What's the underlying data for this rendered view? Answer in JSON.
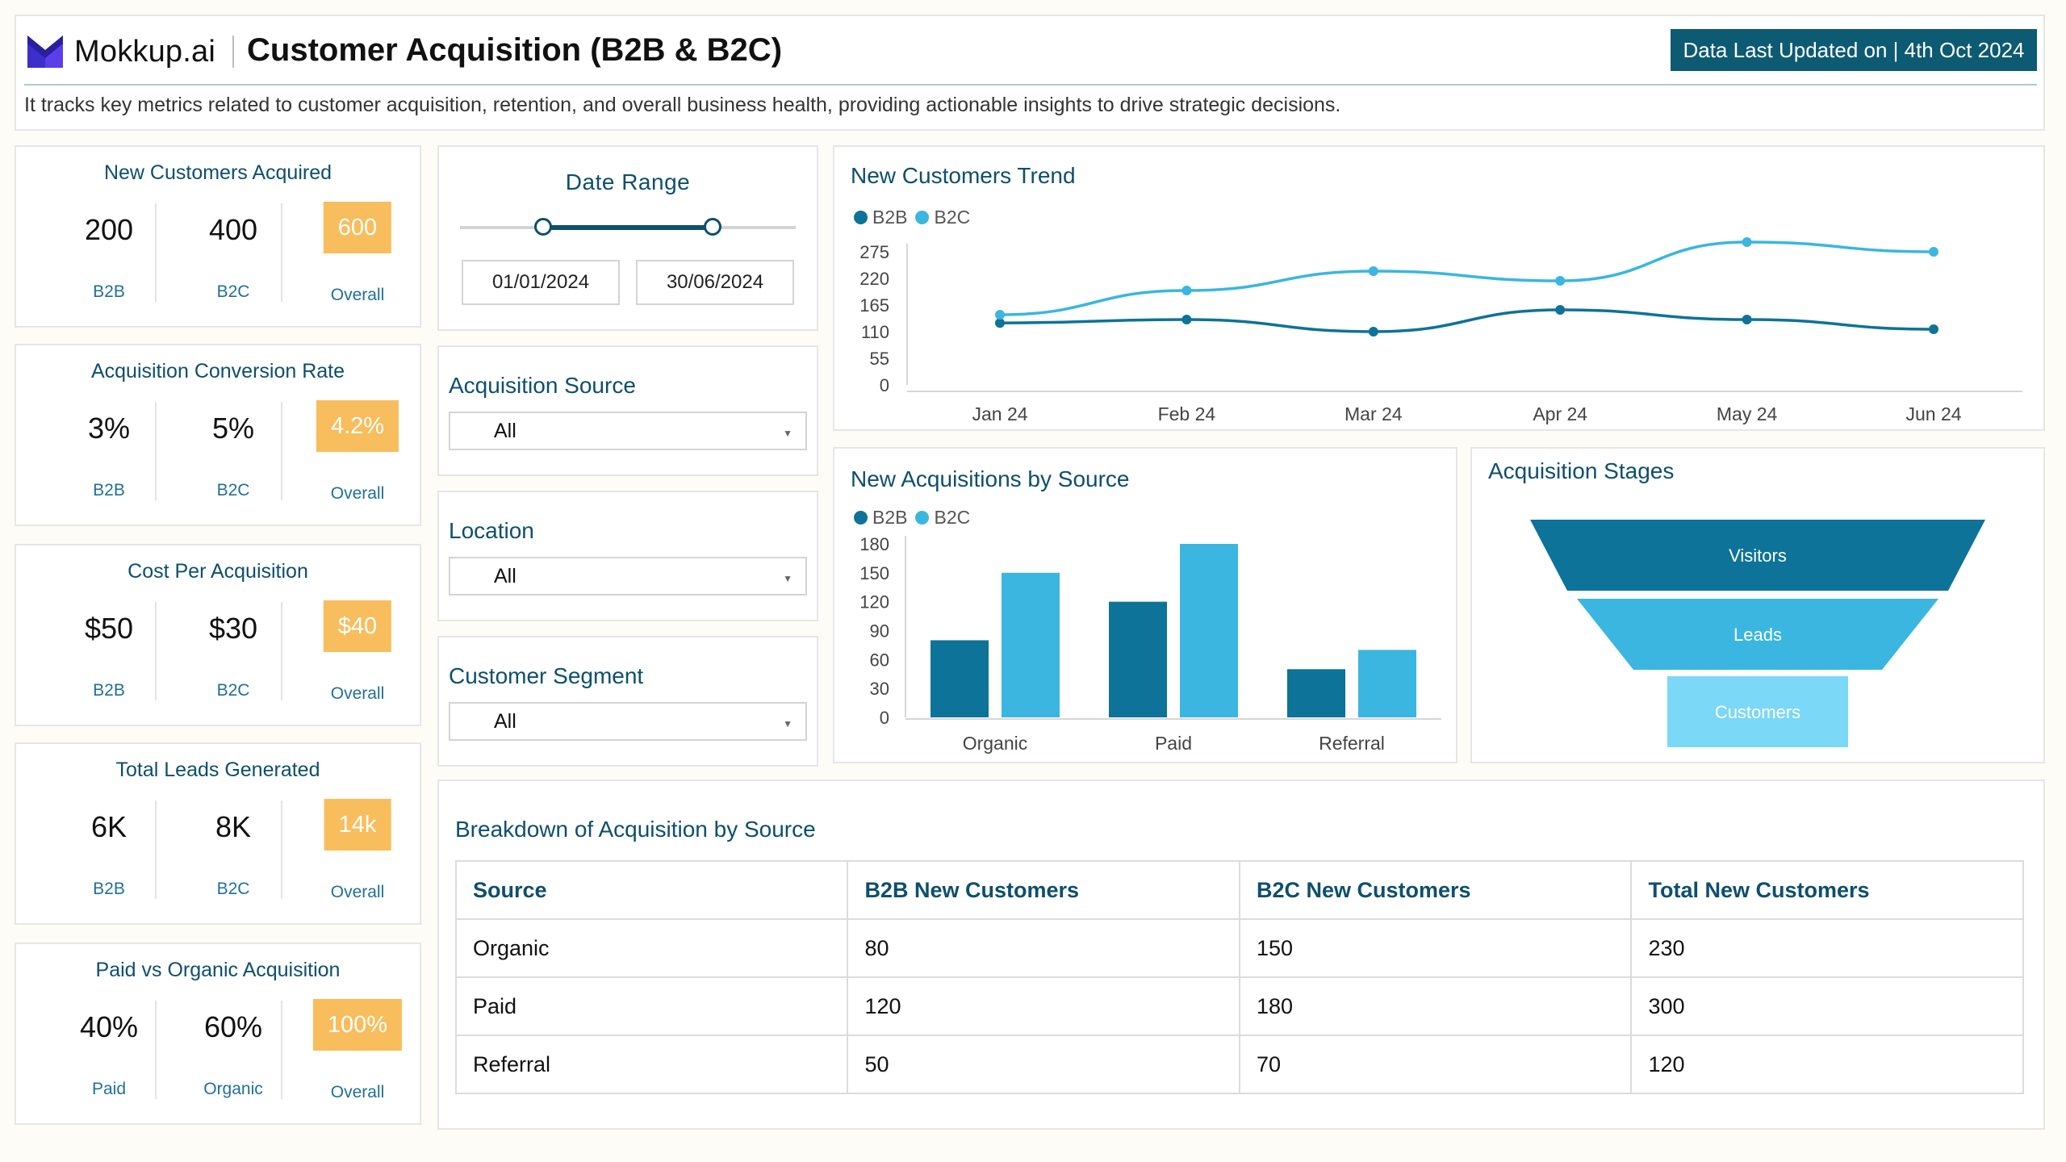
{
  "header": {
    "logo_text": "Mokkup.ai",
    "title": "Customer Acquisition (B2B & B2C)",
    "updated": "Data Last Updated on | 4th Oct 2024",
    "description": "It tracks key metrics related to customer acquisition, retention, and overall business health, providing actionable insights to drive strategic decisions."
  },
  "colors": {
    "dark": "#0d7398",
    "light": "#3ab6e0",
    "lighter": "#7bd8f6",
    "accent": "#f8bd5c",
    "navy": "#0d4f6e"
  },
  "kpis": [
    {
      "title": "New Customers Acquired",
      "cols": [
        {
          "value": "200",
          "label": "B2B"
        },
        {
          "value": "400",
          "label": "B2C"
        },
        {
          "value": "600",
          "label": "Overall"
        }
      ]
    },
    {
      "title": "Acquisition Conversion Rate",
      "cols": [
        {
          "value": "3%",
          "label": "B2B"
        },
        {
          "value": "5%",
          "label": "B2C"
        },
        {
          "value": "4.2%",
          "label": "Overall"
        }
      ]
    },
    {
      "title": "Cost Per Acquisition",
      "cols": [
        {
          "value": "$50",
          "label": "B2B"
        },
        {
          "value": "$30",
          "label": "B2C"
        },
        {
          "value": "$40",
          "label": "Overall"
        }
      ]
    },
    {
      "title": "Total Leads Generated",
      "cols": [
        {
          "value": "6K",
          "label": "B2B"
        },
        {
          "value": "8K",
          "label": "B2C"
        },
        {
          "value": "14k",
          "label": "Overall"
        }
      ]
    },
    {
      "title": "Paid vs Organic Acquisition",
      "cols": [
        {
          "value": "40%",
          "label": "Paid"
        },
        {
          "value": "60%",
          "label": "Organic"
        },
        {
          "value": "100%",
          "label": "Overall"
        }
      ]
    }
  ],
  "filters": {
    "date_range": {
      "title": "Date Range",
      "start": "01/01/2024",
      "end": "30/06/2024"
    },
    "source": {
      "title": "Acquisition Source",
      "value": "All"
    },
    "location": {
      "title": "Location",
      "value": "All"
    },
    "segment": {
      "title": "Customer Segment",
      "value": "All"
    }
  },
  "trend": {
    "title": "New Customers Trend",
    "legend": [
      "B2B",
      "B2C"
    ]
  },
  "by_source": {
    "title": "New Acquisitions by Source",
    "legend": [
      "B2B",
      "B2C"
    ]
  },
  "stages": {
    "title": "Acquisition Stages",
    "labels": [
      "Visitors",
      "Leads",
      "Customers"
    ]
  },
  "chart_data": [
    {
      "type": "line",
      "title": "New Customers Trend",
      "x": [
        "Jan 24",
        "Feb 24",
        "Mar 24",
        "Apr 24",
        "May 24",
        "Jun 24"
      ],
      "y_ticks": [
        0,
        55,
        110,
        165,
        220,
        275
      ],
      "ylim": [
        0,
        275
      ],
      "series": [
        {
          "name": "B2B",
          "values": [
            128,
            135,
            110,
            155,
            135,
            115
          ]
        },
        {
          "name": "B2C",
          "values": [
            145,
            195,
            235,
            215,
            295,
            275
          ]
        }
      ]
    },
    {
      "type": "bar",
      "title": "New Acquisitions by Source",
      "categories": [
        "Organic",
        "Paid",
        "Referral"
      ],
      "y_ticks": [
        0,
        30,
        60,
        90,
        120,
        150,
        180
      ],
      "ylim": [
        0,
        180
      ],
      "series": [
        {
          "name": "B2B",
          "values": [
            80,
            120,
            50
          ]
        },
        {
          "name": "B2C",
          "values": [
            150,
            180,
            70
          ]
        }
      ]
    }
  ],
  "table": {
    "title": "Breakdown of Acquisition by Source",
    "headers": [
      "Source",
      "B2B New Customers",
      "B2C New Customers",
      "Total New Customers"
    ],
    "rows": [
      [
        "Organic",
        "80",
        "150",
        "230"
      ],
      [
        "Paid",
        "120",
        "180",
        "300"
      ],
      [
        "Referral",
        "50",
        "70",
        "120"
      ]
    ]
  }
}
